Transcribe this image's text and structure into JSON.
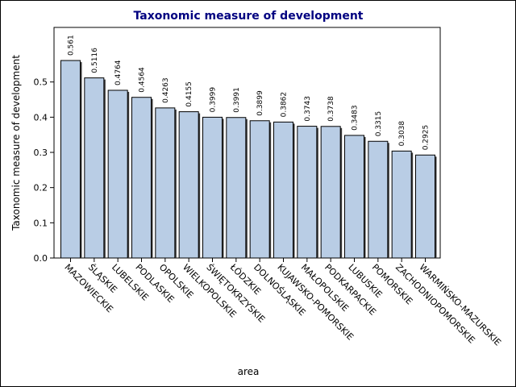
{
  "chart_data": {
    "type": "bar",
    "title": "Taxonomic measure of development",
    "xlabel": "area",
    "ylabel": "Taxonomic measure of development",
    "categories": [
      "MAZOWIECKIE",
      "ŚLĄSKIE",
      "LUBELSKIE",
      "PODLASKIE",
      "OPOLSKIE",
      "WIELKOPOLSKIE",
      "ŚWIĘTOKRZYSKIE",
      "ŁÓDZKIE",
      "DOLNOŚLĄSKIE",
      "KUJAWSKO-POMORSKIE",
      "MAŁOPOLSKIE",
      "PODKARPACKIE",
      "LUBUSKIE",
      "POMORSKIE",
      "ZACHODNIOPOMORSKIE",
      "WARMIŃSKO-MAZURSKIE"
    ],
    "values": [
      0.561,
      0.5116,
      0.4764,
      0.4564,
      0.4263,
      0.4155,
      0.3999,
      0.3991,
      0.3899,
      0.3862,
      0.3743,
      0.3738,
      0.3483,
      0.3315,
      0.3038,
      0.2925
    ],
    "data_labels": [
      "0.561",
      "0.5116",
      "0.4764",
      "0.4564",
      "0.4263",
      "0.4155",
      "0.3999",
      "0.3991",
      "0.3899",
      "0.3862",
      "0.3743",
      "0.3738",
      "0.3483",
      "0.3315",
      "0.3038",
      "0.2925"
    ],
    "yticks": [
      0.0,
      0.1,
      0.2,
      0.3,
      0.4,
      0.5
    ],
    "ytick_labels": [
      "0.0",
      "0.1",
      "0.2",
      "0.3",
      "0.4",
      "0.5"
    ],
    "ylim": [
      0,
      0.655
    ],
    "grid": false,
    "colors": {
      "bar_fill": "#b9cde5",
      "bar_stroke": "#000000",
      "bar_shadow": "#3a3a3a",
      "title": "#000080"
    }
  }
}
